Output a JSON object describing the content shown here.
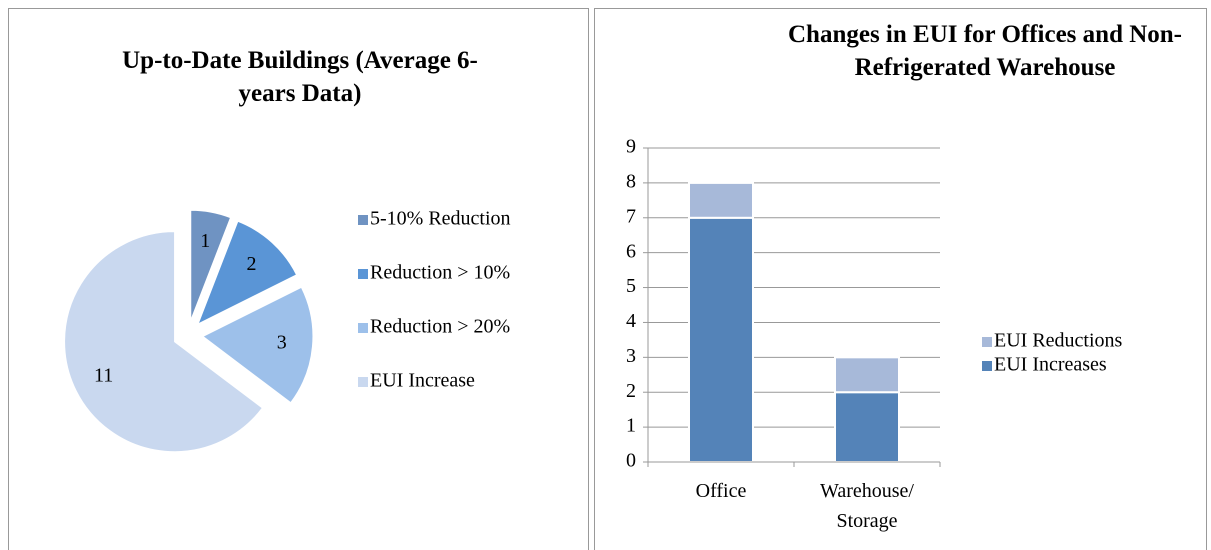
{
  "chart_data": [
    {
      "type": "pie",
      "title": "Up-to-Date Buildings (Average 6-years Data)",
      "categories": [
        "5-10% Reduction",
        "Reduction > 10%",
        "Reduction > 20%",
        "EUI Increase"
      ],
      "values": [
        1,
        2,
        3,
        11
      ],
      "colors": [
        "#6f93c2",
        "#5a95d6",
        "#9dc0ea",
        "#c9d8ef"
      ]
    },
    {
      "type": "stacked_bar",
      "title": "Changes in EUI for Offices and Non-Refrigerated Warehouse",
      "categories": [
        "Office",
        "Warehouse/ Storage"
      ],
      "series": [
        {
          "name": "EUI Increases",
          "color": "#5483b8",
          "values": [
            7,
            2
          ]
        },
        {
          "name": "EUI Reductions",
          "color": "#a7b9d9",
          "values": [
            1,
            1
          ]
        }
      ],
      "ylim": [
        0,
        9
      ],
      "yticks": [
        0,
        1,
        2,
        3,
        4,
        5,
        6,
        7,
        8,
        9
      ],
      "grid": true
    }
  ]
}
